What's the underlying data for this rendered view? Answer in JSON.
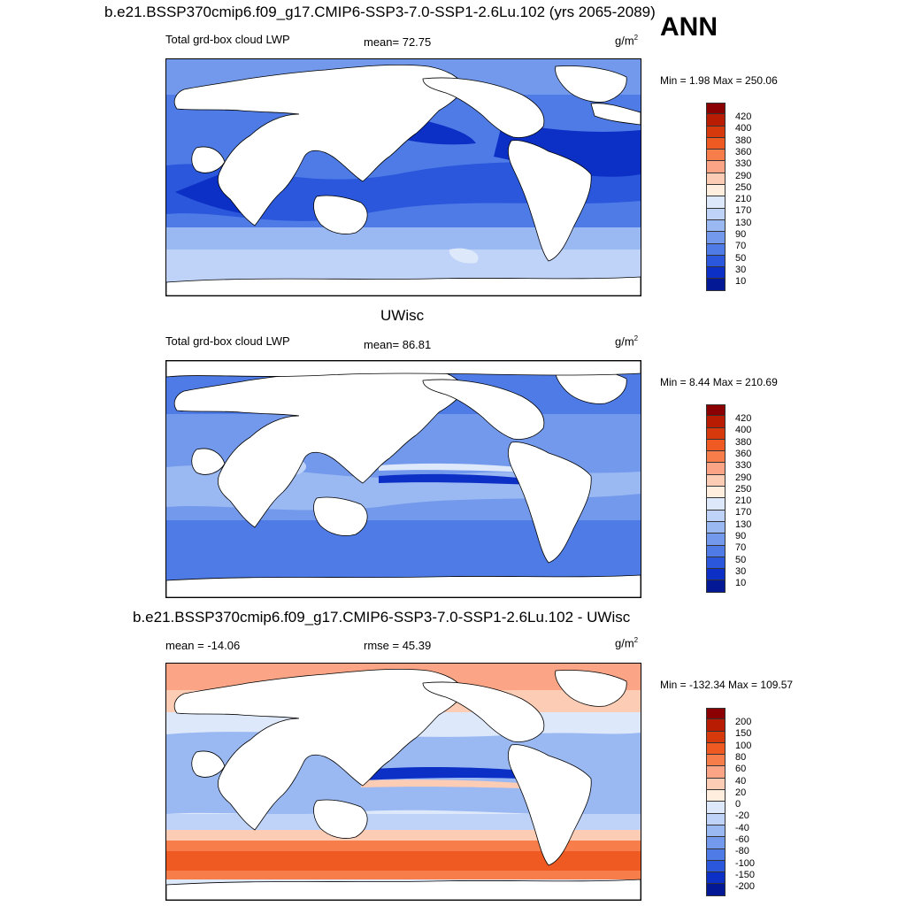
{
  "main_title": "b.e21.BSSP370cmip6.f09_g17.CMIP6-SSP3-7.0-SSP1-2.6Lu.102 (yrs 2065-2089)",
  "season": "ANN",
  "panels": [
    {
      "title": "",
      "left_label": "Total grd-box cloud LWP",
      "center_label": "mean=  72.75",
      "units_base": "g/m",
      "units_sup": "2",
      "minmax": "Min =   1.98 Max = 250.06",
      "kind": "abs"
    },
    {
      "title": "UWisc",
      "left_label": "Total grd-box cloud LWP",
      "center_label": "mean=  86.81",
      "units_base": "g/m",
      "units_sup": "2",
      "minmax": "Min =   8.44 Max = 210.69",
      "kind": "abs"
    },
    {
      "title": "b.e21.BSSP370cmip6.f09_g17.CMIP6-SSP3-7.0-SSP1-2.6Lu.102 - UWisc",
      "left_label": "mean = -14.06",
      "center_label": "rmse =  45.39",
      "units_base": "g/m",
      "units_sup": "2",
      "minmax": "Min = -132.34 Max = 109.57",
      "kind": "diff"
    }
  ],
  "colorbars": {
    "abs": {
      "labels": [
        "420",
        "400",
        "380",
        "360",
        "330",
        "290",
        "250",
        "210",
        "170",
        "130",
        "90",
        "70",
        "50",
        "30",
        "10"
      ],
      "colors": [
        "#8b0000",
        "#b81d04",
        "#d63a0c",
        "#ee5a22",
        "#f77e4a",
        "#fba586",
        "#fdccb4",
        "#ffeedd",
        "#dde8fb",
        "#bfd2f7",
        "#9ab8f2",
        "#7399ec",
        "#4f7be6",
        "#2a57db",
        "#0c30c6",
        "#021894"
      ]
    },
    "diff": {
      "labels": [
        "200",
        "150",
        "100",
        "80",
        "60",
        "40",
        "20",
        "0",
        "-20",
        "-40",
        "-60",
        "-80",
        "-100",
        "-150",
        "-200"
      ],
      "colors": [
        "#8b0000",
        "#b81d04",
        "#d63a0c",
        "#ee5a22",
        "#f77e4a",
        "#fba586",
        "#fdccb4",
        "#ffeedd",
        "#dde8fb",
        "#bfd2f7",
        "#9ab8f2",
        "#7399ec",
        "#4f7be6",
        "#2a57db",
        "#0c30c6",
        "#021894"
      ]
    }
  }
}
